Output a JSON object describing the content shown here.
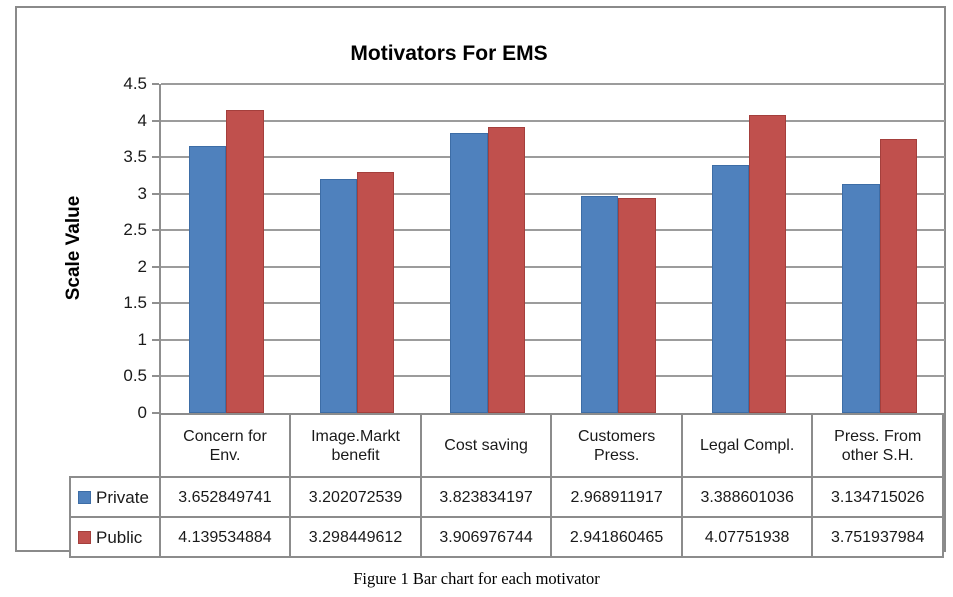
{
  "figure": {
    "caption": "Figure 1 Bar chart for each motivator"
  },
  "colors": {
    "private_blue": "#4F81BD",
    "private_blue_edge": "#3d6da6",
    "public_red": "#C0504D",
    "public_red_edge": "#a43f3c",
    "gridline": "#9c9c9c",
    "axis": "#8f8f8f",
    "table_border": "#8c8c8c",
    "frame_border": "#8a8a8a",
    "text": "#1a1a1a"
  },
  "chart_data": {
    "type": "bar",
    "title": "Motivators For EMS",
    "xlabel": "",
    "ylabel": "Scale Value",
    "ylim": [
      0,
      4.5
    ],
    "yticks": [
      0,
      0.5,
      1,
      1.5,
      2,
      2.5,
      3,
      3.5,
      4,
      4.5
    ],
    "grid": true,
    "gap_width_ratio": 1.5,
    "legend_position": "data-table-left-column",
    "categories": [
      "Concern for Env.",
      "Image.Markt benefit",
      "Cost saving",
      "Customers Press.",
      "Legal Compl.",
      "Press. From other S.H."
    ],
    "series": [
      {
        "name": "Private",
        "color": "#4F81BD",
        "values": [
          3.652849741,
          3.202072539,
          3.823834197,
          2.968911917,
          3.388601036,
          3.134715026
        ],
        "value_labels": [
          "3.652849741",
          "3.202072539",
          "3.823834197",
          "2.968911917",
          "3.388601036",
          "3.134715026"
        ]
      },
      {
        "name": "Public",
        "color": "#C0504D",
        "values": [
          4.139534884,
          3.298449612,
          3.906976744,
          2.941860465,
          4.07751938,
          3.751937984
        ],
        "value_labels": [
          "4.139534884",
          "3.298449612",
          "3.906976744",
          "2.941860465",
          "4.07751938",
          "3.751937984"
        ]
      }
    ]
  }
}
